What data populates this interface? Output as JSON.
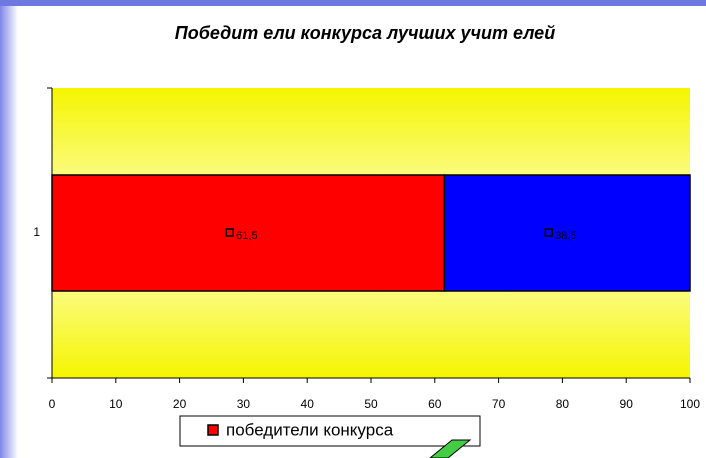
{
  "chart_data": {
    "type": "stacked-barh",
    "title": "Победит ели конкурса лучших учит елей",
    "categories": [
      "1"
    ],
    "series": [
      {
        "name": "победители конкурса",
        "color": "#ff0000",
        "values": [
          61.5
        ],
        "value_labels": [
          "61,5"
        ]
      },
      {
        "color": "#0000ff",
        "values": [
          38.5
        ],
        "value_labels": [
          "38,5"
        ]
      }
    ],
    "xlim": [
      0,
      100
    ],
    "xticks": [
      0,
      10,
      20,
      30,
      40,
      50,
      60,
      70,
      80,
      90,
      100
    ],
    "legend": "bottom"
  }
}
